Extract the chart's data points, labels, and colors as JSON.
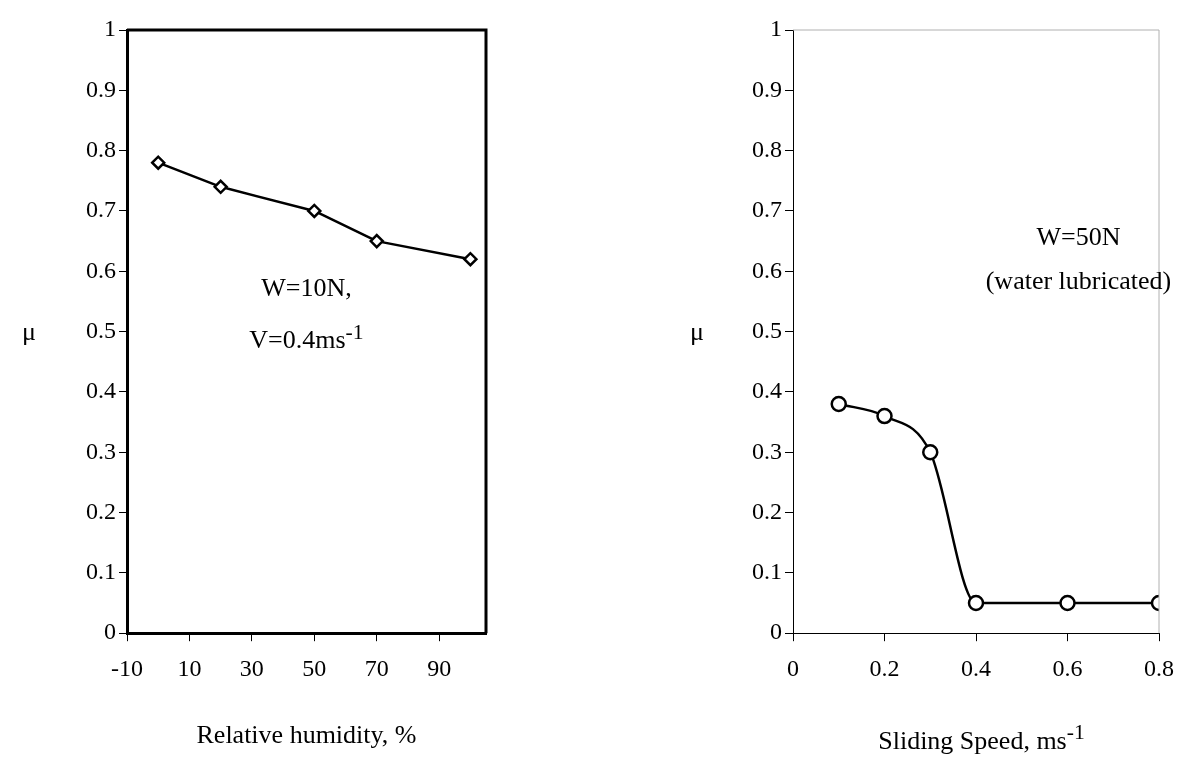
{
  "chart_data": [
    {
      "type": "line",
      "xlabel": "Relative humidity, %",
      "ylabel": "μ",
      "x": [
        0,
        20,
        50,
        70,
        100
      ],
      "values": [
        0.78,
        0.74,
        0.7,
        0.65,
        0.62
      ],
      "color": "#000000",
      "marker": "diamond",
      "xlim": [
        -10,
        105
      ],
      "xticks": [
        -10,
        10,
        30,
        50,
        70,
        90
      ],
      "ylim": [
        0,
        1
      ],
      "yticks": [
        0,
        0.1,
        0.2,
        0.3,
        0.4,
        0.5,
        0.6,
        0.7,
        0.8,
        0.9,
        1
      ],
      "annotations": [
        "W=10N,",
        "V=0.4ms$^{-1}$"
      ]
    },
    {
      "type": "line",
      "xlabel": "Sliding Speed, ms$^{-1}$",
      "ylabel": "μ",
      "x": [
        0.1,
        0.2,
        0.3,
        0.4,
        0.6,
        0.8
      ],
      "values": [
        0.38,
        0.36,
        0.3,
        0.05,
        0.05,
        0.05
      ],
      "color": "#000000",
      "marker": "circle",
      "xlim": [
        0,
        0.8
      ],
      "xticks": [
        0,
        0.2,
        0.4,
        0.6,
        0.8
      ],
      "ylim": [
        0,
        1
      ],
      "yticks": [
        0,
        0.1,
        0.2,
        0.3,
        0.4,
        0.5,
        0.6,
        0.7,
        0.8,
        0.9,
        1
      ],
      "annotations": [
        "W=50N",
        "(water lubricated)"
      ]
    }
  ]
}
